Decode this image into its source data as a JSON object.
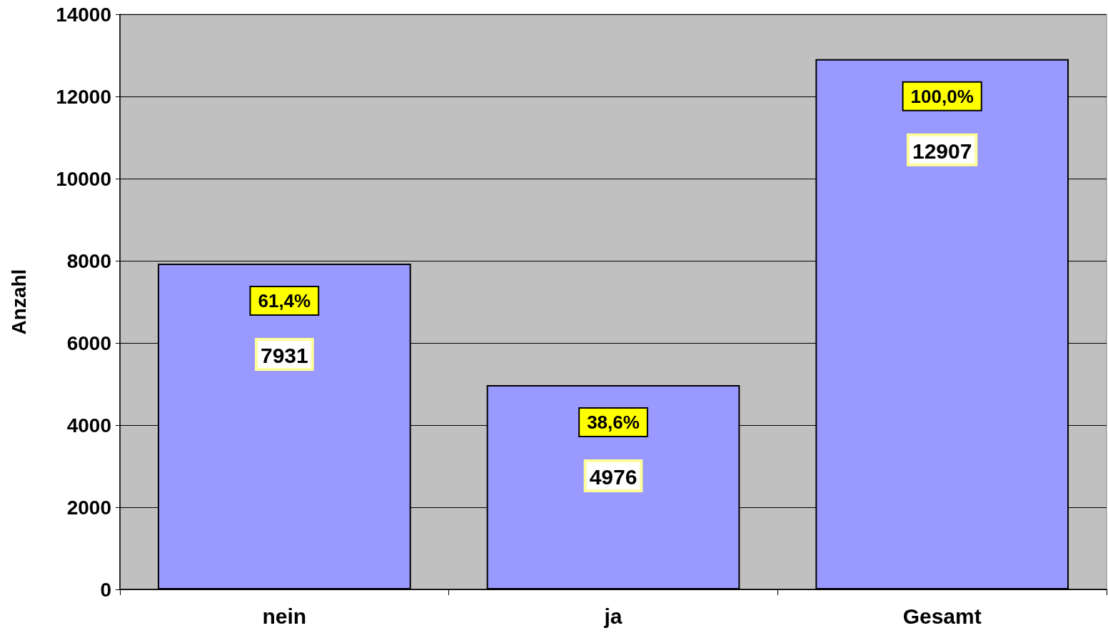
{
  "chart_data": {
    "type": "bar",
    "ylabel": "Anzahl",
    "categories": [
      "nein",
      "ja",
      "Gesamt"
    ],
    "values": [
      7931,
      4976,
      12907
    ],
    "color": "#9999ff",
    "ylim": [
      0,
      14000
    ],
    "yticks": [
      0,
      2000,
      4000,
      6000,
      8000,
      10000,
      12000,
      14000
    ],
    "grid": "y",
    "data_labels": true,
    "annotations": [
      {
        "text": "61,4%",
        "x": "nein",
        "y": 7931
      },
      {
        "text": "38,6%",
        "x": "ja",
        "y": 4976
      },
      {
        "text": "100,0%",
        "x": "Gesamt",
        "y": 12907
      }
    ]
  }
}
